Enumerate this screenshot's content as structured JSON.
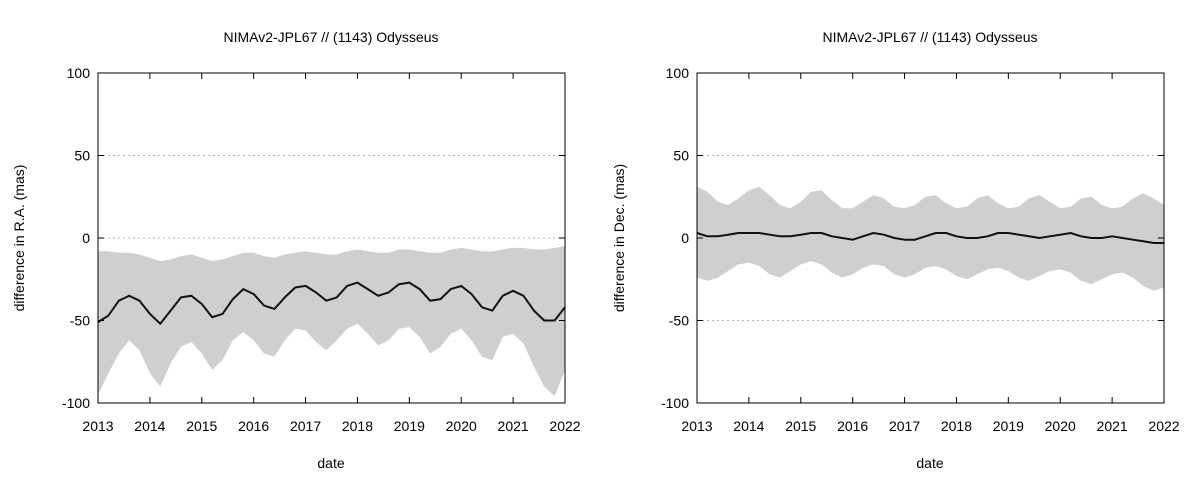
{
  "chart_data": [
    {
      "type": "line",
      "title": "NIMAv2-JPL67 // (1143) Odysseus",
      "xlabel": "date",
      "ylabel": "difference in R.A. (mas)",
      "xlim": [
        2013,
        2022
      ],
      "ylim": [
        -100,
        100
      ],
      "xticks": [
        "2013",
        "2014",
        "2015",
        "2016",
        "2017",
        "2018",
        "2019",
        "2020",
        "2021",
        "2022"
      ],
      "yticks": [
        "-100",
        "-50",
        "0",
        "50",
        "100"
      ],
      "grid": "horizontal-dotted",
      "band_color": "#cfcfcf",
      "line_color": "#111111",
      "series": [
        {
          "x": [
            2013.0,
            2013.2,
            2013.4,
            2013.6,
            2013.8,
            2014.0,
            2014.2,
            2014.4,
            2014.6,
            2014.8,
            2015.0,
            2015.2,
            2015.4,
            2015.6,
            2015.8,
            2016.0,
            2016.2,
            2016.4,
            2016.6,
            2016.8,
            2017.0,
            2017.2,
            2017.4,
            2017.6,
            2017.8,
            2018.0,
            2018.2,
            2018.4,
            2018.6,
            2018.8,
            2019.0,
            2019.2,
            2019.4,
            2019.6,
            2019.8,
            2020.0,
            2020.2,
            2020.4,
            2020.6,
            2020.8,
            2021.0,
            2021.2,
            2021.4,
            2021.6,
            2021.8,
            2022.0
          ],
          "y": [
            -51,
            -47,
            -38,
            -35,
            -38,
            -46,
            -52,
            -44,
            -36,
            -35,
            -40,
            -48,
            -46,
            -37,
            -31,
            -34,
            -41,
            -43,
            -36,
            -30,
            -29,
            -33,
            -38,
            -36,
            -29,
            -27,
            -31,
            -35,
            -33,
            -28,
            -27,
            -31,
            -38,
            -37,
            -31,
            -29,
            -34,
            -42,
            -44,
            -35,
            -32,
            -35,
            -44,
            -50,
            -50,
            -42
          ],
          "lower": [
            -95,
            -82,
            -70,
            -62,
            -68,
            -82,
            -90,
            -76,
            -66,
            -63,
            -70,
            -80,
            -74,
            -62,
            -57,
            -62,
            -70,
            -72,
            -62,
            -55,
            -56,
            -63,
            -68,
            -62,
            -55,
            -52,
            -58,
            -65,
            -62,
            -55,
            -54,
            -60,
            -70,
            -66,
            -58,
            -55,
            -62,
            -72,
            -74,
            -60,
            -58,
            -64,
            -78,
            -90,
            -96,
            -80
          ],
          "upper": [
            -8,
            -8,
            -9,
            -9,
            -10,
            -12,
            -14,
            -13,
            -11,
            -10,
            -12,
            -14,
            -13,
            -11,
            -9,
            -9,
            -11,
            -12,
            -10,
            -9,
            -8,
            -9,
            -10,
            -10,
            -8,
            -7,
            -8,
            -9,
            -9,
            -7,
            -7,
            -8,
            -9,
            -9,
            -7,
            -6,
            -7,
            -8,
            -8,
            -7,
            -6,
            -6,
            -7,
            -7,
            -6,
            -5
          ]
        }
      ]
    },
    {
      "type": "line",
      "title": "NIMAv2-JPL67 // (1143) Odysseus",
      "xlabel": "date",
      "ylabel": "difference in Dec. (mas)",
      "xlim": [
        2013,
        2022
      ],
      "ylim": [
        -100,
        100
      ],
      "xticks": [
        "2013",
        "2014",
        "2015",
        "2016",
        "2017",
        "2018",
        "2019",
        "2020",
        "2021",
        "2022"
      ],
      "yticks": [
        "-100",
        "-50",
        "0",
        "50",
        "100"
      ],
      "grid": "horizontal-dotted",
      "band_color": "#cfcfcf",
      "line_color": "#111111",
      "series": [
        {
          "x": [
            2013.0,
            2013.2,
            2013.4,
            2013.6,
            2013.8,
            2014.0,
            2014.2,
            2014.4,
            2014.6,
            2014.8,
            2015.0,
            2015.2,
            2015.4,
            2015.6,
            2015.8,
            2016.0,
            2016.2,
            2016.4,
            2016.6,
            2016.8,
            2017.0,
            2017.2,
            2017.4,
            2017.6,
            2017.8,
            2018.0,
            2018.2,
            2018.4,
            2018.6,
            2018.8,
            2019.0,
            2019.2,
            2019.4,
            2019.6,
            2019.8,
            2020.0,
            2020.2,
            2020.4,
            2020.6,
            2020.8,
            2021.0,
            2021.2,
            2021.4,
            2021.6,
            2021.8,
            2022.0
          ],
          "y": [
            3,
            1,
            1,
            2,
            3,
            3,
            3,
            2,
            1,
            1,
            2,
            3,
            3,
            1,
            0,
            -1,
            1,
            3,
            2,
            0,
            -1,
            -1,
            1,
            3,
            3,
            1,
            0,
            0,
            1,
            3,
            3,
            2,
            1,
            0,
            1,
            2,
            3,
            1,
            0,
            0,
            1,
            0,
            -1,
            -2,
            -3,
            -3
          ],
          "lower": [
            -24,
            -26,
            -24,
            -20,
            -16,
            -15,
            -17,
            -22,
            -24,
            -20,
            -16,
            -14,
            -16,
            -21,
            -24,
            -22,
            -18,
            -16,
            -17,
            -22,
            -24,
            -22,
            -18,
            -17,
            -19,
            -23,
            -25,
            -22,
            -19,
            -18,
            -20,
            -24,
            -26,
            -23,
            -20,
            -19,
            -21,
            -26,
            -28,
            -25,
            -22,
            -21,
            -24,
            -29,
            -32,
            -30
          ],
          "upper": [
            31,
            28,
            22,
            20,
            24,
            29,
            31,
            26,
            20,
            18,
            22,
            28,
            29,
            23,
            18,
            18,
            22,
            26,
            24,
            19,
            18,
            20,
            25,
            26,
            21,
            18,
            19,
            24,
            26,
            21,
            18,
            19,
            24,
            26,
            22,
            18,
            19,
            24,
            25,
            20,
            18,
            19,
            24,
            27,
            24,
            20
          ]
        }
      ]
    }
  ]
}
